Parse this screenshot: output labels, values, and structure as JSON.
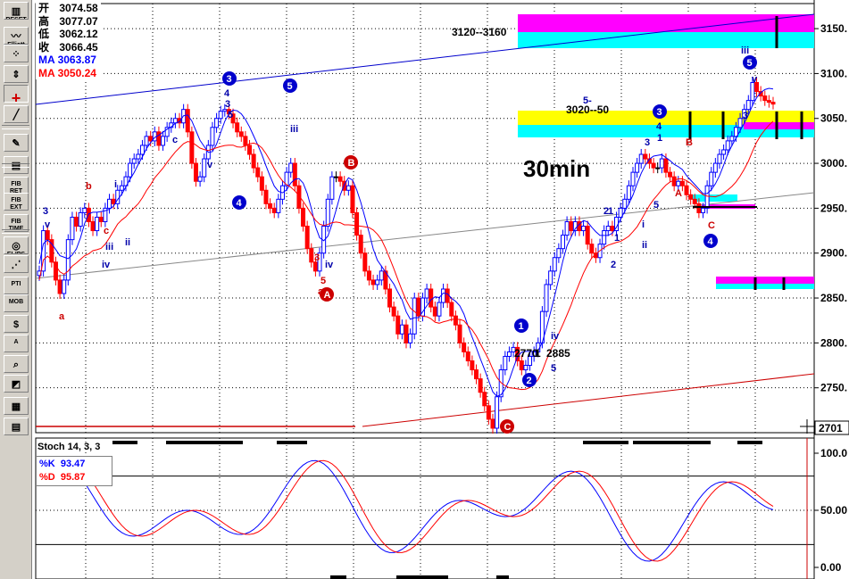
{
  "toolbar": {
    "items": [
      {
        "name": "reset-button",
        "label": "RESET",
        "icon": "bars-icon"
      },
      {
        "name": "elliott-button",
        "label": "Elliott",
        "icon": "wave-icon"
      },
      {
        "name": "draw-button",
        "label": "",
        "icon": "dots-icon"
      },
      {
        "name": "cursor-button",
        "label": "",
        "icon": "arrows-icon"
      },
      {
        "name": "crosshair-button",
        "label": "",
        "icon": "crosshair-icon"
      },
      {
        "name": "line-button",
        "label": "",
        "icon": "line-icon"
      },
      {
        "name": "pencil-button",
        "label": "",
        "icon": "pencil-icon"
      },
      {
        "name": "channel-button",
        "label": "",
        "icon": "channel-icon"
      },
      {
        "name": "fib-ret-button",
        "label": "FIB RET",
        "icon": ""
      },
      {
        "name": "fib-ext-button",
        "label": "FIB EXT",
        "icon": ""
      },
      {
        "name": "fib-time-button",
        "label": "FIB TIME",
        "icon": ""
      },
      {
        "name": "elips-button",
        "label": "ELIPS",
        "icon": "ellipse-icon"
      },
      {
        "name": "fan-button",
        "label": "",
        "icon": "fan-icon"
      },
      {
        "name": "pti-button",
        "label": "PTI",
        "icon": ""
      },
      {
        "name": "mob-button",
        "label": "MOB",
        "icon": ""
      },
      {
        "name": "dollar-button",
        "label": "",
        "icon": "dollar-icon"
      },
      {
        "name": "text-button",
        "label": "A",
        "icon": ""
      },
      {
        "name": "zoom-button",
        "label": "",
        "icon": "magnifier-icon"
      },
      {
        "name": "eraser-button",
        "label": "",
        "icon": "eraser-icon"
      },
      {
        "name": "grid-button",
        "label": "",
        "icon": "grid-icon"
      },
      {
        "name": "table-button",
        "label": "",
        "icon": "table-icon"
      }
    ]
  },
  "ohlc": {
    "open_label": "开",
    "open": "3074.58",
    "high_label": "高",
    "high": "3077.07",
    "low_label": "低",
    "low": "3062.12",
    "close_label": "收",
    "close": "3066.45",
    "ma1_label": "MA",
    "ma1": "3063.87",
    "ma2_label": "MA",
    "ma2": "3050.24"
  },
  "colors": {
    "up": "#0000ff",
    "down": "#ff0000",
    "neutral": "#000000",
    "ma_fast": "#0000ff",
    "ma_slow": "#ff0000",
    "magenta": "#ff00ff",
    "cyan": "#00ffff",
    "yellow": "#ffff00"
  },
  "chart_data": [
    {
      "type": "candlestick",
      "title": "30min",
      "y_axis": {
        "min": 2701,
        "max": 3160,
        "ticks": [
          "3150.",
          "3100.",
          "3050.",
          "3000.",
          "2950.",
          "2900.",
          "2850.",
          "2800.",
          "2750."
        ],
        "current_price": "2701"
      },
      "grid": true,
      "bars_approx_close": [
        2880,
        2925,
        2915,
        2890,
        2870,
        2855,
        2870,
        2915,
        2940,
        2930,
        2945,
        2950,
        2935,
        2925,
        2940,
        2935,
        2950,
        2960,
        2955,
        2970,
        2975,
        2985,
        3000,
        3005,
        3010,
        3020,
        3030,
        3025,
        3035,
        3020,
        3030,
        3040,
        3045,
        3050,
        3045,
        3060,
        3035,
        3000,
        2980,
        2985,
        3005,
        3020,
        3040,
        3050,
        3058,
        3060,
        3055,
        3045,
        3035,
        3030,
        3020,
        3010,
        2995,
        2985,
        2970,
        2955,
        2950,
        2945,
        2960,
        2975,
        2990,
        3000,
        2975,
        2950,
        2930,
        2905,
        2890,
        2880,
        2900,
        2930,
        2960,
        2985,
        2985,
        2980,
        2970,
        2975,
        2945,
        2920,
        2900,
        2880,
        2870,
        2865,
        2870,
        2880,
        2860,
        2840,
        2830,
        2810,
        2820,
        2800,
        2810,
        2850,
        2830,
        2850,
        2860,
        2840,
        2830,
        2845,
        2860,
        2845,
        2830,
        2820,
        2800,
        2790,
        2780,
        2770,
        2760,
        2745,
        2730,
        2715,
        2705,
        2740,
        2770,
        2785,
        2790,
        2795,
        2780,
        2770,
        2775,
        2785,
        2790,
        2800,
        2835,
        2865,
        2880,
        2895,
        2905,
        2920,
        2935,
        2925,
        2935,
        2925,
        2930,
        2910,
        2900,
        2895,
        2910,
        2925,
        2930,
        2925,
        2940,
        2950,
        2960,
        2975,
        2990,
        3000,
        3010,
        3005,
        3000,
        2995,
        2995,
        3005,
        2990,
        2985,
        2975,
        2980,
        2975,
        2965,
        2960,
        2955,
        2945,
        2950,
        2975,
        2990,
        3000,
        3010,
        3015,
        3025,
        3030,
        3040,
        3050,
        3060,
        3070,
        3090,
        3080,
        3075,
        3070,
        3068,
        3066
      ],
      "annotations_blue": [
        "3",
        "v",
        "i",
        "iii",
        "iv",
        "ii",
        "c",
        "4",
        "3",
        "5",
        "v",
        "iii",
        "iv",
        "1",
        "2",
        "i",
        "ii",
        "3",
        "4",
        "1",
        "5",
        "3",
        "iii",
        "v",
        "iv",
        "5",
        "5-",
        "1",
        "2"
      ],
      "annotations_red": [
        "a",
        "b",
        "c",
        "3",
        "5",
        "a",
        "B",
        "A",
        "C"
      ],
      "circled_blue": [
        "3",
        "5",
        "4",
        "1",
        "2",
        "3",
        "5",
        "4"
      ],
      "circled_red": [
        "A",
        "B",
        "C"
      ],
      "labels": [
        "3120--3160",
        "3020--50",
        "2770",
        "1",
        "2885"
      ]
    },
    {
      "type": "line",
      "title": "Stoch 14, 3, 3",
      "series": [
        {
          "name": "%K",
          "value": "93.47",
          "color": "#0000ff"
        },
        {
          "name": "%D",
          "value": "95.87",
          "color": "#ff0000"
        }
      ],
      "y_axis": {
        "ticks": [
          "100.0",
          "50.00",
          "0.00"
        ],
        "min": 0,
        "max": 100
      },
      "levels": [
        80,
        20
      ]
    }
  ]
}
